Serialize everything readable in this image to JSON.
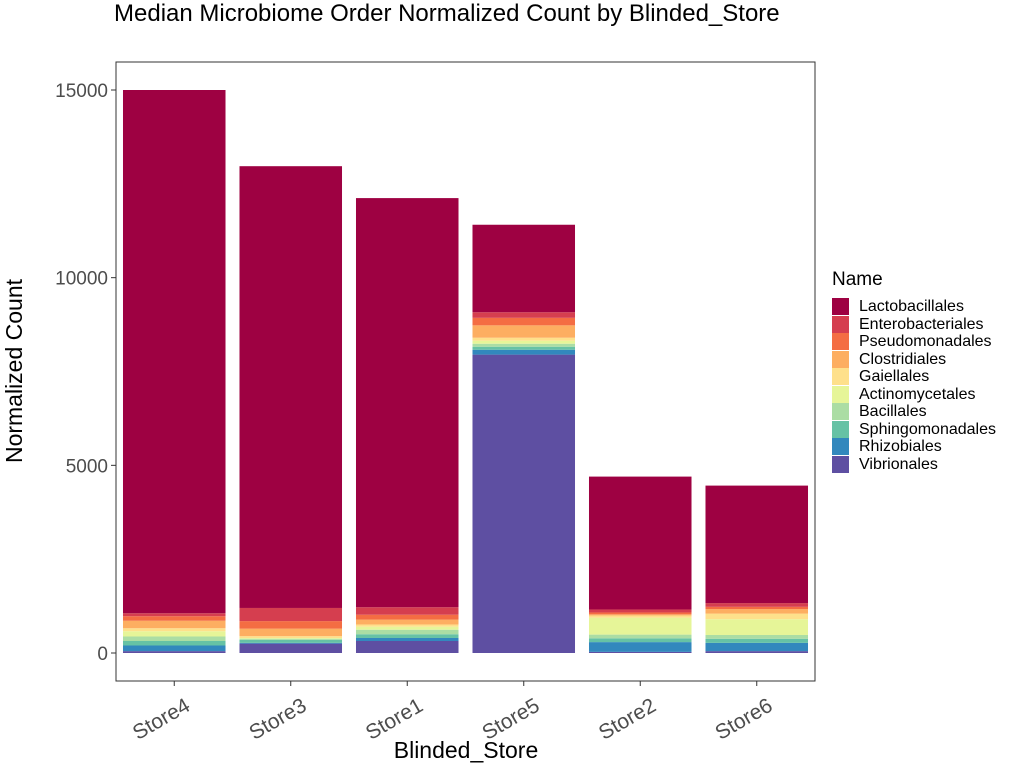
{
  "chart_data": {
    "type": "bar",
    "stacked": true,
    "title": "Median Microbiome Order Normalized Count by Blinded_Store",
    "xlabel": "Blinded_Store",
    "ylabel": "Normalized Count",
    "ylim": [
      -750,
      15750
    ],
    "yticks": [
      0,
      5000,
      10000,
      15000
    ],
    "ytick_labels": [
      "0",
      "5000",
      "10000",
      "15000"
    ],
    "categories": [
      "Store4",
      "Store3",
      "Store1",
      "Store5",
      "Store2",
      "Store6"
    ],
    "legend_title": "Name",
    "legend_position": "right",
    "grid": false,
    "series": [
      {
        "name": "Vibrionales",
        "color": "#5E4FA2",
        "values": [
          50,
          250,
          320,
          7950,
          30,
          50
        ]
      },
      {
        "name": "Rhizobiales",
        "color": "#3288BD",
        "values": [
          150,
          20,
          80,
          130,
          260,
          220
        ]
      },
      {
        "name": "Sphingomonadales",
        "color": "#66C2A5",
        "values": [
          120,
          80,
          100,
          80,
          100,
          110
        ]
      },
      {
        "name": "Bacillales",
        "color": "#ABDDA4",
        "values": [
          120,
          30,
          120,
          80,
          100,
          100
        ]
      },
      {
        "name": "Actinomycetales",
        "color": "#E6F598",
        "values": [
          140,
          20,
          80,
          80,
          450,
          420
        ]
      },
      {
        "name": "Gaiellales",
        "color": "#FEE08B",
        "values": [
          80,
          50,
          60,
          80,
          60,
          150
        ]
      },
      {
        "name": "Clostridiales",
        "color": "#FDAE61",
        "values": [
          200,
          200,
          130,
          330,
          30,
          120
        ]
      },
      {
        "name": "Pseudomonadales",
        "color": "#F46D43",
        "values": [
          120,
          200,
          130,
          200,
          50,
          60
        ]
      },
      {
        "name": "Enterobacteriales",
        "color": "#D53E4F",
        "values": [
          80,
          350,
          200,
          150,
          80,
          100
        ]
      },
      {
        "name": "Lactobacillales",
        "color": "#9E0142",
        "values": [
          13940,
          11770,
          10900,
          2330,
          3540,
          3130
        ]
      }
    ]
  }
}
